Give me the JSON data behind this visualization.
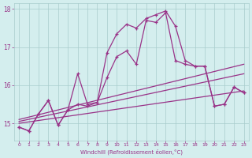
{
  "xlabel": "Windchill (Refroidissement éolien,°C)",
  "bg_color": "#d4eeee",
  "grid_color": "#a8cccc",
  "line_color": "#993388",
  "xlim": [
    -0.5,
    23.5
  ],
  "ylim": [
    14.55,
    18.15
  ],
  "yticks": [
    15,
    16,
    17,
    18
  ],
  "xticks": [
    0,
    1,
    2,
    3,
    4,
    5,
    6,
    7,
    8,
    9,
    10,
    11,
    12,
    13,
    14,
    15,
    16,
    17,
    18,
    19,
    20,
    21,
    22,
    23
  ],
  "trend1_x": [
    0,
    23
  ],
  "trend1_y": [
    15.1,
    16.55
  ],
  "trend2_x": [
    0,
    23
  ],
  "trend2_y": [
    15.05,
    16.3
  ],
  "trend3_x": [
    0,
    23
  ],
  "trend3_y": [
    15.0,
    15.85
  ],
  "main1_x": [
    0,
    1,
    2,
    3,
    4,
    5,
    6,
    7,
    8,
    9,
    10,
    11,
    12,
    13,
    14,
    15,
    16,
    17,
    18,
    19,
    20,
    21,
    22,
    23
  ],
  "main1_y": [
    14.9,
    14.8,
    15.25,
    15.6,
    14.95,
    15.35,
    16.3,
    15.5,
    15.55,
    16.2,
    16.75,
    16.9,
    16.55,
    17.7,
    17.65,
    17.9,
    16.65,
    16.55,
    16.5,
    16.5,
    15.45,
    15.5,
    15.95,
    15.8
  ],
  "main2_x": [
    0,
    1,
    2,
    3,
    4,
    5,
    6,
    7,
    8,
    9,
    10,
    11,
    12,
    13,
    14,
    15,
    16,
    17,
    18,
    19,
    20,
    21,
    22,
    23
  ],
  "main2_y": [
    14.9,
    14.8,
    15.25,
    15.6,
    14.95,
    15.35,
    15.5,
    15.45,
    15.55,
    16.85,
    17.35,
    17.6,
    17.5,
    17.75,
    17.85,
    17.95,
    17.55,
    16.65,
    16.5,
    16.5,
    15.45,
    15.5,
    15.95,
    15.8
  ]
}
